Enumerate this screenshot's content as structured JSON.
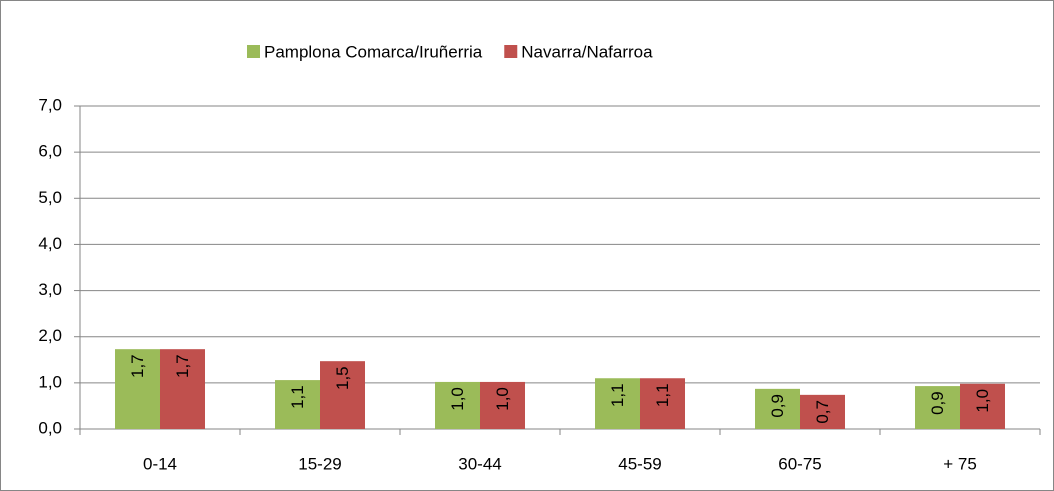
{
  "chart_data": {
    "type": "bar",
    "categories": [
      "0-14",
      "15-29",
      "30-44",
      "45-59",
      "60-75",
      "+ 75"
    ],
    "series": [
      {
        "name": "Pamplona Comarca/Iruñerria",
        "color": "#9bbb59",
        "values": [
          1.73,
          1.06,
          1.02,
          1.1,
          0.87,
          0.93
        ],
        "value_labels": [
          "1,7",
          "1,1",
          "1,0",
          "1,1",
          "0,9",
          "0,9"
        ]
      },
      {
        "name": "Navarra/Nafarroa",
        "color": "#c0504d",
        "values": [
          1.73,
          1.47,
          1.02,
          1.1,
          0.74,
          0.98
        ],
        "value_labels": [
          "1,7",
          "1,5",
          "1,0",
          "1,1",
          "0,7",
          "1,0"
        ]
      }
    ],
    "ylim": [
      0,
      7
    ],
    "yticks": [
      {
        "value": 0,
        "label": "0,0"
      },
      {
        "value": 1,
        "label": "1,0"
      },
      {
        "value": 2,
        "label": "2,0"
      },
      {
        "value": 3,
        "label": "3,0"
      },
      {
        "value": 4,
        "label": "4,0"
      },
      {
        "value": 5,
        "label": "5,0"
      },
      {
        "value": 6,
        "label": "6,0"
      },
      {
        "value": 7,
        "label": "7,0"
      }
    ],
    "grid": true,
    "legend": "top"
  }
}
